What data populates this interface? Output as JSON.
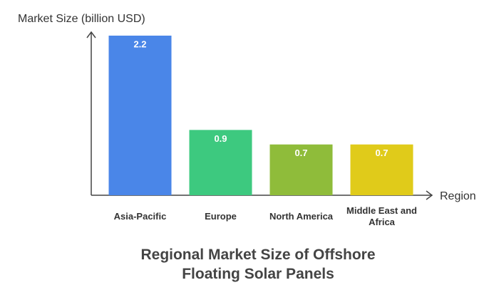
{
  "chart_data": {
    "type": "bar",
    "title": "Regional Market Size of Offshore Floating Solar Panels",
    "y_label": "Market Size (billion USD)",
    "x_label": "Region",
    "categories": [
      "Asia-Pacific",
      "Europe",
      "North America",
      "Middle East and Africa"
    ],
    "values": [
      2.2,
      0.9,
      0.7,
      0.7
    ],
    "colors": [
      "#4a86e8",
      "#3dc97f",
      "#8fbc3a",
      "#e0cb1a"
    ],
    "ylim": [
      0,
      2.2
    ]
  }
}
